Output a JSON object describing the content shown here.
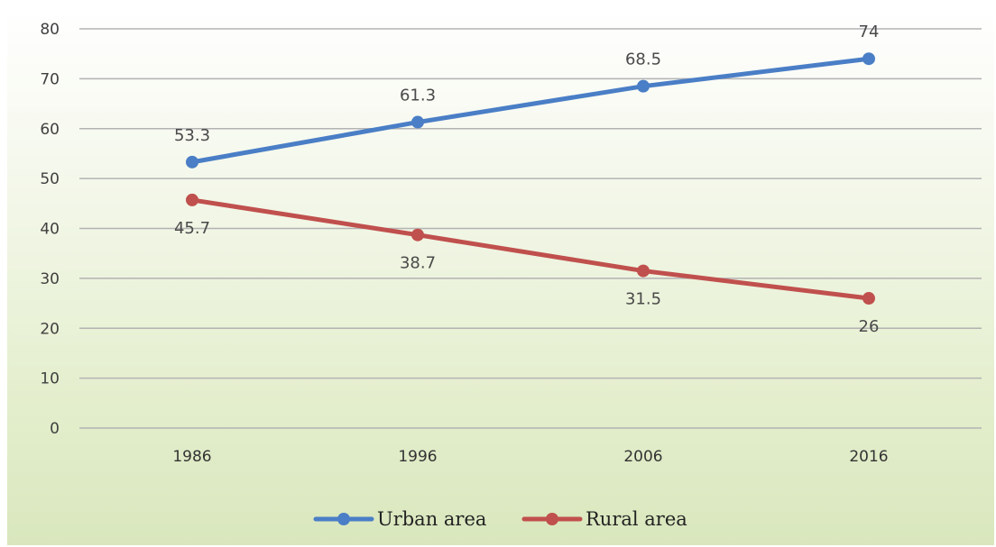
{
  "chart_data": {
    "type": "line",
    "title": "",
    "xlabel": "",
    "ylabel": "",
    "categories": [
      "1986",
      "1996",
      "2006",
      "2016"
    ],
    "ylim": [
      0,
      80
    ],
    "yticks": [
      0,
      10,
      20,
      30,
      40,
      50,
      60,
      70,
      80
    ],
    "grid": true,
    "legend": "bottom-center",
    "series": [
      {
        "name": "Urban area",
        "color": "#4a7ec6",
        "values": [
          53.3,
          61.3,
          68.5,
          74
        ],
        "labels": [
          "53.3",
          "61.3",
          "68.5",
          "74"
        ],
        "label_position": "above"
      },
      {
        "name": "Rural area",
        "color": "#c0504d",
        "values": [
          45.7,
          38.7,
          31.5,
          26
        ],
        "labels": [
          "45.7",
          "38.7",
          "31.5",
          "26"
        ],
        "label_position": "below"
      }
    ]
  }
}
